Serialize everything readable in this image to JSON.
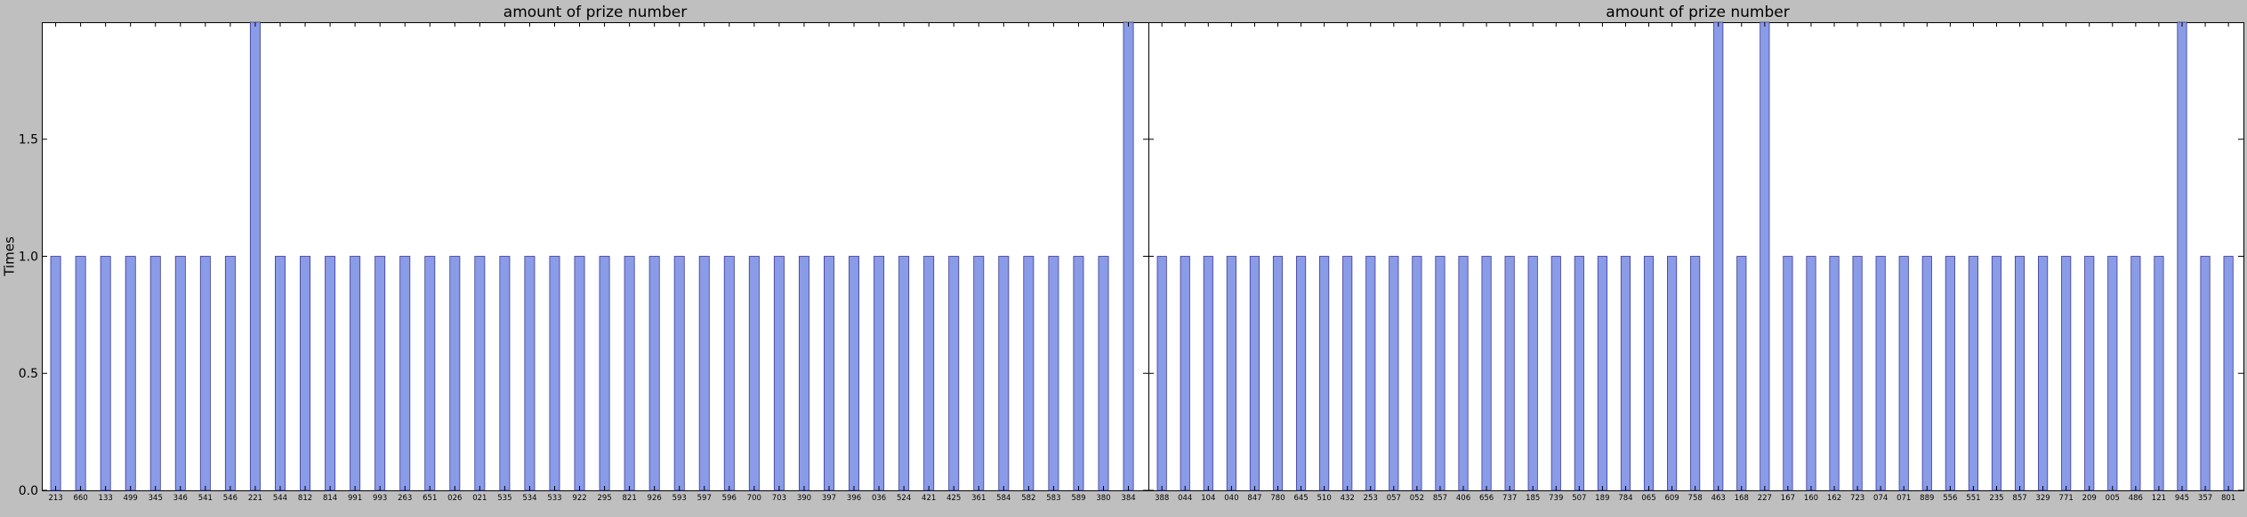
{
  "chart_data": [
    {
      "type": "bar",
      "title": "amount of prize number",
      "ylabel": "Times",
      "xlabel": "",
      "ylim": [
        0,
        2
      ],
      "yticks": [
        "0.0",
        "0.5",
        "1.0",
        "1.5"
      ],
      "grid": false,
      "bar_color": "#8a9be8",
      "categories": [
        "213",
        "660",
        "133",
        "499",
        "345",
        "346",
        "541",
        "546",
        "221",
        "544",
        "812",
        "814",
        "991",
        "993",
        "263",
        "651",
        "026",
        "021",
        "535",
        "534",
        "533",
        "922",
        "295",
        "821",
        "926",
        "593",
        "597",
        "596",
        "700",
        "703",
        "390",
        "397",
        "396",
        "036",
        "524",
        "421",
        "425",
        "361",
        "584",
        "582",
        "583",
        "589",
        "380",
        "384"
      ],
      "values": [
        1,
        1,
        1,
        1,
        1,
        1,
        1,
        1,
        2,
        1,
        1,
        1,
        1,
        1,
        1,
        1,
        1,
        1,
        1,
        1,
        1,
        1,
        1,
        1,
        1,
        1,
        1,
        1,
        1,
        1,
        1,
        1,
        1,
        1,
        1,
        1,
        1,
        1,
        1,
        1,
        1,
        1,
        1,
        2
      ]
    },
    {
      "type": "bar",
      "title": "amount of prize number",
      "ylabel": "",
      "xlabel": "",
      "ylim": [
        0,
        2
      ],
      "yticks": [
        "0.0",
        "0.5",
        "1.0",
        "1.5"
      ],
      "grid": false,
      "bar_color": "#8a9be8",
      "categories": [
        "388",
        "044",
        "104",
        "040",
        "847",
        "780",
        "645",
        "510",
        "432",
        "253",
        "057",
        "052",
        "857",
        "406",
        "656",
        "737",
        "185",
        "739",
        "507",
        "189",
        "784",
        "065",
        "609",
        "758",
        "463",
        "168",
        "227",
        "167",
        "160",
        "162",
        "723",
        "074",
        "071",
        "889",
        "556",
        "551",
        "235",
        "857",
        "329",
        "771",
        "209",
        "005",
        "486",
        "121",
        "945",
        "357",
        "801"
      ],
      "values": [
        1,
        1,
        1,
        1,
        1,
        1,
        1,
        1,
        1,
        1,
        1,
        1,
        1,
        1,
        1,
        1,
        1,
        1,
        1,
        1,
        1,
        1,
        1,
        1,
        2,
        1,
        2,
        1,
        1,
        1,
        1,
        1,
        1,
        1,
        1,
        1,
        1,
        1,
        1,
        1,
        1,
        1,
        1,
        1,
        2,
        1,
        1
      ]
    }
  ]
}
